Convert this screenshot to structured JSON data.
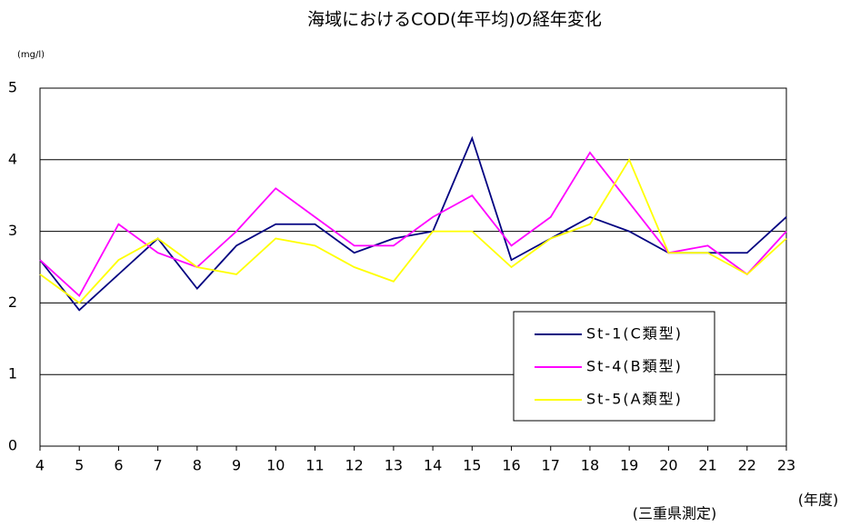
{
  "chart_data": {
    "type": "line",
    "title": "海域におけるCOD(年平均)の経年変化",
    "y_unit": "(mg/l)",
    "x_label": "(年度)",
    "note": "(三重県測定)",
    "categories": [
      "4",
      "5",
      "6",
      "7",
      "8",
      "9",
      "10",
      "11",
      "12",
      "13",
      "14",
      "15",
      "16",
      "17",
      "18",
      "19",
      "20",
      "21",
      "22",
      "23"
    ],
    "series": [
      {
        "name": "St-1(C類型)",
        "color": "#000080",
        "values": [
          2.6,
          1.9,
          2.4,
          2.9,
          2.2,
          2.8,
          3.1,
          3.1,
          2.7,
          2.9,
          3.0,
          4.3,
          2.6,
          2.9,
          3.2,
          3.0,
          2.7,
          2.7,
          2.7,
          3.2
        ]
      },
      {
        "name": "St-4(B類型)",
        "color": "#ff00ff",
        "values": [
          2.6,
          2.1,
          3.1,
          2.7,
          2.5,
          3.0,
          3.6,
          3.2,
          2.8,
          2.8,
          3.2,
          3.5,
          2.8,
          3.2,
          4.1,
          3.4,
          2.7,
          2.8,
          2.4,
          3.0
        ]
      },
      {
        "name": "St-5(A類型)",
        "color": "#ffff00",
        "values": [
          2.4,
          2.0,
          2.6,
          2.9,
          2.5,
          2.4,
          2.9,
          2.8,
          2.5,
          2.3,
          3.0,
          3.0,
          2.5,
          2.9,
          3.1,
          4.0,
          2.7,
          2.7,
          2.4,
          2.9
        ]
      }
    ],
    "ylim": [
      0,
      5
    ],
    "yticks": [
      0,
      1,
      2,
      3,
      4,
      5
    ],
    "grid": true
  }
}
